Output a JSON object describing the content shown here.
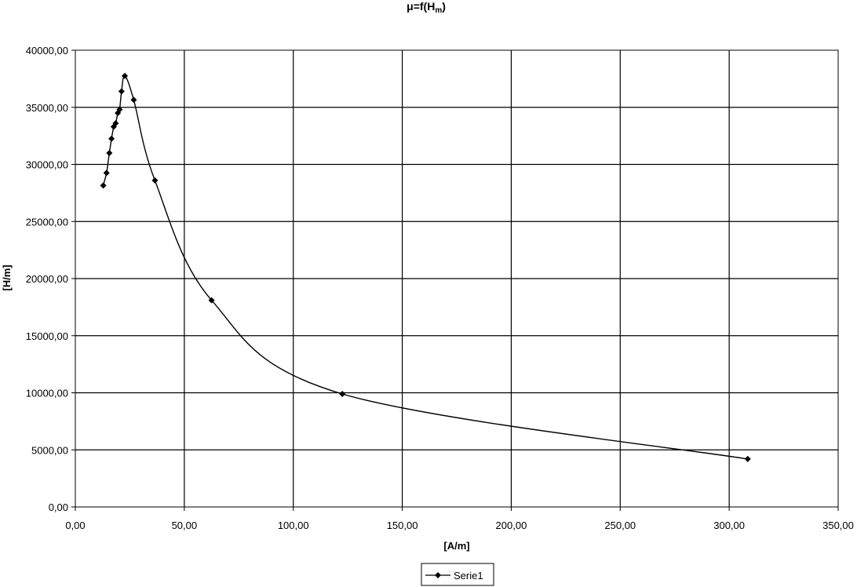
{
  "chart_data": {
    "type": "scatter",
    "title_mu": "μ",
    "title_rest": "=f(H",
    "title_sub": "m",
    "title_close": ")",
    "xlabel": "[A/m]",
    "ylabel": "[H/m]",
    "xlim": [
      0,
      350
    ],
    "ylim": [
      0,
      40000
    ],
    "x_ticks": [
      "0,00",
      "50,00",
      "100,00",
      "150,00",
      "200,00",
      "250,00",
      "300,00",
      "350,00"
    ],
    "y_ticks": [
      "0,00",
      "5000,00",
      "10000,00",
      "15000,00",
      "20000,00",
      "25000,00",
      "30000,00",
      "35000,00",
      "40000,00"
    ],
    "grid": true,
    "legend_position": "bottom-center",
    "series": [
      {
        "name": "Serie1",
        "color": "#000000",
        "marker": "diamond",
        "smooth": true,
        "x": [
          12.8,
          14.3,
          15.6,
          16.6,
          17.6,
          18.5,
          19.5,
          20.3,
          21.2,
          22.7,
          26.8,
          36.5,
          62.5,
          122.5,
          308.5
        ],
        "y": [
          28150,
          29250,
          31000,
          32250,
          33300,
          33600,
          34500,
          34800,
          36400,
          37750,
          35650,
          28600,
          18100,
          9900,
          4200
        ]
      }
    ]
  }
}
